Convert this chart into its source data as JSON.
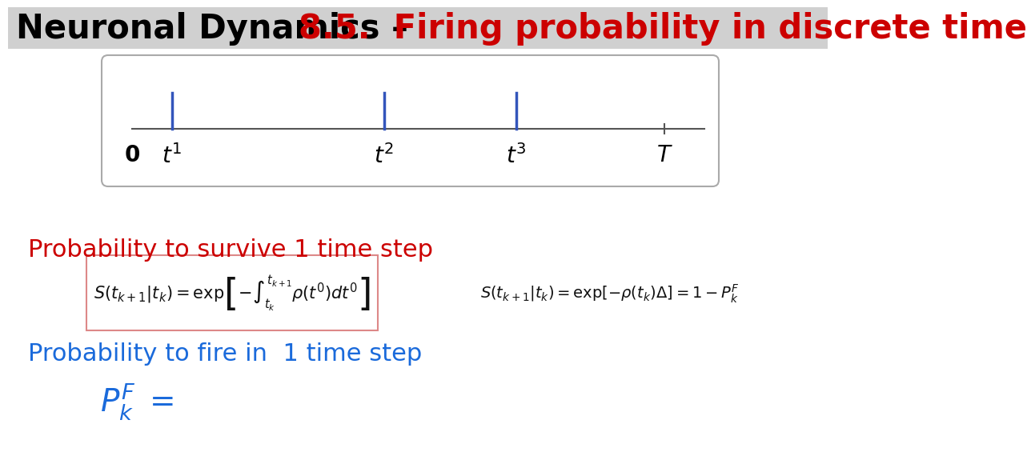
{
  "title_black": "Neuronal Dynamics – ",
  "title_red": "8.5.  Firing probability in discrete time",
  "title_fontsize": 30,
  "title_bg": "#d0d0d0",
  "bg_color": "#ffffff",
  "red_color": "#cc0000",
  "blue_color": "#1a6adb",
  "box_border_color": "#dd8888",
  "spike_color": "#3355bb",
  "timeline_color": "#555555",
  "math_color": "#111111"
}
